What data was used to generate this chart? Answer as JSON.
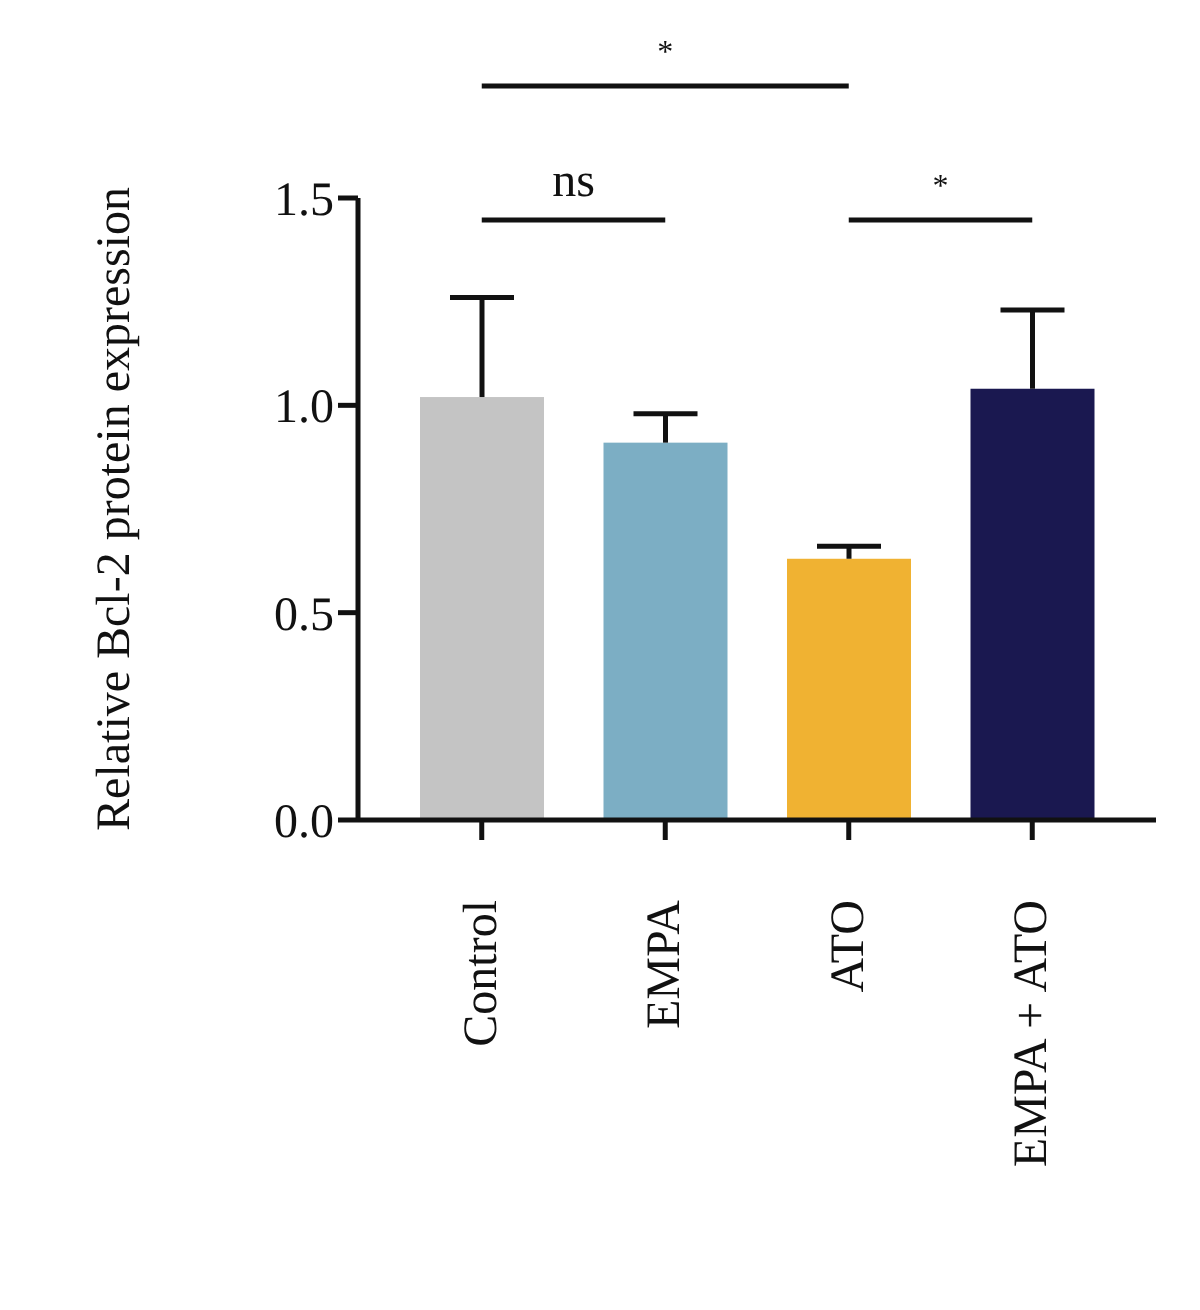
{
  "chart_data": {
    "type": "bar",
    "ylabel": "Relative Bcl-2 protein expression",
    "categories": [
      "Control",
      "EMPA",
      "ATO",
      "EMPA + ATO"
    ],
    "values": [
      1.02,
      0.91,
      0.63,
      1.04
    ],
    "colors": [
      "#c4c4c4",
      "#7caec4",
      "#f0b232",
      "#1a1850"
    ],
    "errors": [
      [
        1.02,
        1.26
      ],
      [
        0.91,
        0.98
      ],
      [
        0.63,
        0.66
      ],
      [
        1.04,
        1.23
      ]
    ],
    "ylim": [
      0,
      1.5
    ],
    "yticks": [
      {
        "value": 0,
        "label": "0.0"
      },
      {
        "value": 0.5,
        "label": "0.5"
      },
      {
        "value": 1,
        "label": "1.0"
      },
      {
        "value": 1.5,
        "label": "1.5"
      }
    ],
    "grid": false,
    "annotations": [
      "*",
      "ns",
      "*"
    ]
  }
}
